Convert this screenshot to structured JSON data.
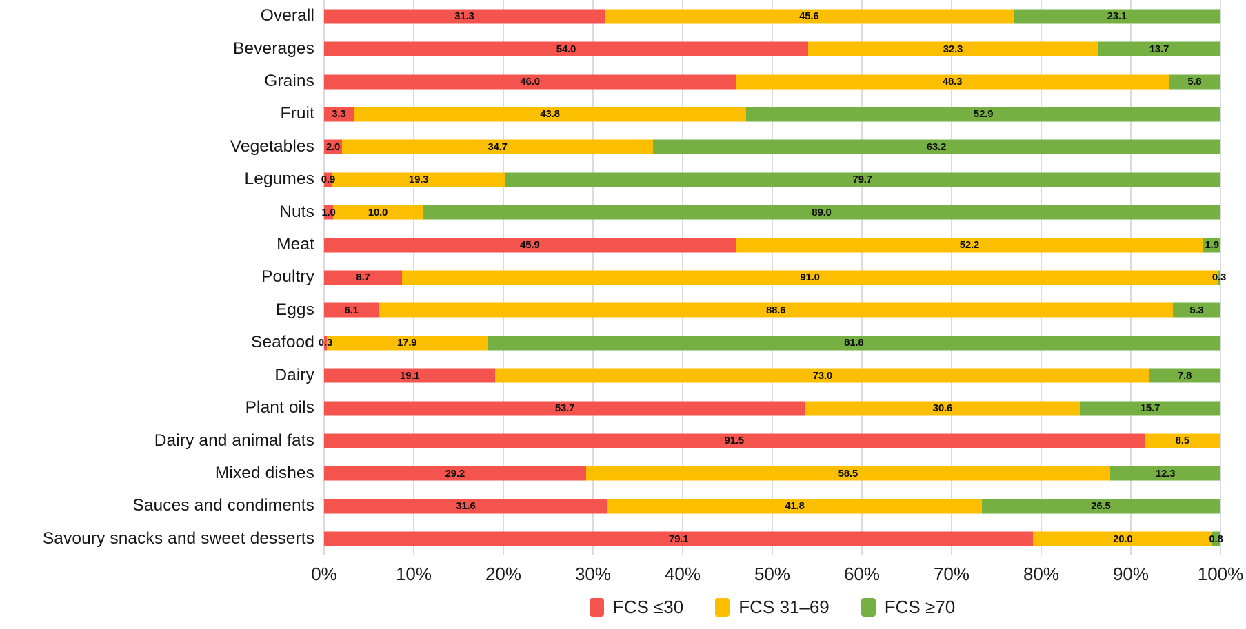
{
  "chart_data": {
    "type": "bar",
    "orientation": "horizontal",
    "stacked": true,
    "title": "",
    "xlabel": "",
    "ylabel": "",
    "x_axis": {
      "min": 0,
      "max": 100,
      "tick_labels": [
        "0%",
        "10%",
        "20%",
        "30%",
        "40%",
        "50%",
        "60%",
        "70%",
        "80%",
        "90%",
        "100%"
      ],
      "grid": true
    },
    "categories": [
      "Overall",
      "Beverages",
      "Grains",
      "Fruit",
      "Vegetables",
      "Legumes",
      "Nuts",
      "Meat",
      "Poultry",
      "Eggs",
      "Seafood",
      "Dairy",
      "Plant oils",
      "Dairy and animal fats",
      "Mixed dishes",
      "Sauces and condiments",
      "Savoury snacks and sweet desserts"
    ],
    "series": [
      {
        "name": "FCS ≤30",
        "key": "fcs-le-30",
        "color": "#F4534E",
        "values": [
          31.3,
          54.0,
          46.0,
          3.3,
          2.0,
          0.9,
          1.0,
          45.9,
          8.7,
          6.1,
          0.3,
          19.1,
          53.7,
          91.5,
          29.2,
          31.6,
          79.1
        ]
      },
      {
        "name": "FCS 31–69",
        "key": "fcs-31-69",
        "color": "#FCBF00",
        "values": [
          45.6,
          32.3,
          48.3,
          43.8,
          34.7,
          19.3,
          10.0,
          52.2,
          91.0,
          88.6,
          17.9,
          73.0,
          30.6,
          8.5,
          58.5,
          41.8,
          20.0
        ]
      },
      {
        "name": "FCS ≥70",
        "key": "fcs-ge-70",
        "color": "#76B043",
        "values": [
          23.1,
          13.7,
          5.8,
          52.9,
          63.2,
          79.7,
          89.0,
          1.9,
          0.3,
          5.3,
          81.8,
          7.8,
          15.7,
          0.0,
          12.3,
          26.5,
          0.8
        ]
      }
    ],
    "value_label_format": "one_decimal",
    "legend": {
      "position": "bottom",
      "items": [
        "FCS ≤30",
        "FCS 31–69",
        "FCS ≥70"
      ]
    }
  },
  "colors": {
    "background": "#FFFFFF",
    "gridline": "#DBDBDB",
    "text": "#161616",
    "value_label": "#0D0D0D"
  }
}
